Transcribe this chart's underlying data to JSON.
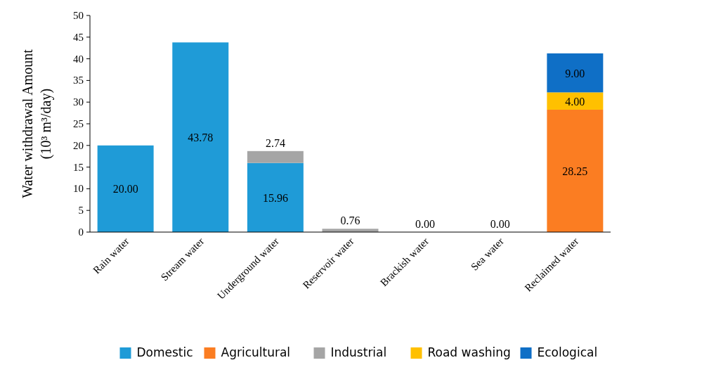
{
  "chart_data": {
    "type": "bar",
    "stacked": true,
    "ylabel": "Water withdrawal Amount\n(10³ m³/day)",
    "categories": [
      "Rain water",
      "Stream water",
      "Underground water",
      "Reservoir water",
      "Brackish water",
      "Sea water",
      "Reclaimed water"
    ],
    "series": [
      {
        "name": "Domestic",
        "color": "#1f9bd7",
        "values": [
          20.0,
          43.78,
          15.96,
          0,
          0,
          0,
          0
        ],
        "value_labels": [
          "20.00",
          "43.78",
          "15.96",
          null,
          null,
          null,
          null
        ]
      },
      {
        "name": "Agricultural",
        "color": "#fb7d22",
        "values": [
          0,
          0,
          0,
          0,
          0,
          0,
          28.25
        ],
        "value_labels": [
          null,
          null,
          null,
          null,
          null,
          null,
          "28.25"
        ]
      },
      {
        "name": "Industrial",
        "color": "#a5a5a5",
        "values": [
          0,
          0,
          2.74,
          0.76,
          0,
          0,
          0
        ],
        "value_labels": [
          null,
          null,
          "2.74",
          "0.76",
          "0.00",
          "0.00",
          null
        ]
      },
      {
        "name": "Road washing",
        "color": "#ffc000",
        "values": [
          0,
          0,
          0,
          0,
          0,
          0,
          4.0
        ],
        "value_labels": [
          null,
          null,
          null,
          null,
          null,
          null,
          "4.00"
        ]
      },
      {
        "name": "Ecological",
        "color": "#0f6fc6",
        "values": [
          0,
          0,
          0,
          0,
          0,
          0,
          9.0
        ],
        "value_labels": [
          null,
          null,
          null,
          null,
          null,
          null,
          "9.00"
        ]
      }
    ],
    "ylim": [
      0,
      50
    ],
    "yticks": [
      0,
      5,
      10,
      15,
      20,
      25,
      30,
      35,
      40,
      45,
      50
    ],
    "legend": "bottom"
  }
}
